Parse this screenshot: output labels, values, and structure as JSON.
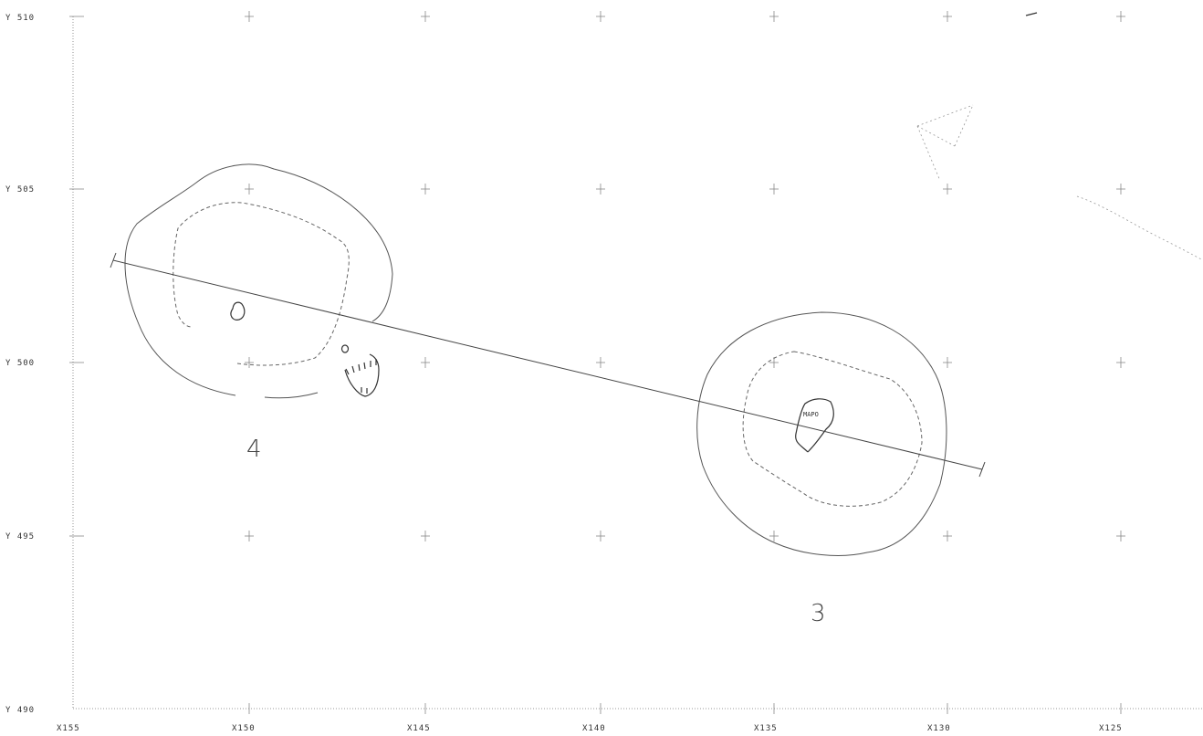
{
  "y_axis_labels": [
    "Y 510",
    "Y 505",
    "Y 500",
    "Y 495",
    "Y 490"
  ],
  "x_axis_labels": [
    "X155",
    "X150",
    "X145",
    "X140",
    "X135",
    "X130",
    "X125"
  ],
  "features": [
    {
      "id": "4",
      "label": "4"
    },
    {
      "id": "3",
      "label": "3"
    }
  ],
  "inner_label": "MAPO"
}
